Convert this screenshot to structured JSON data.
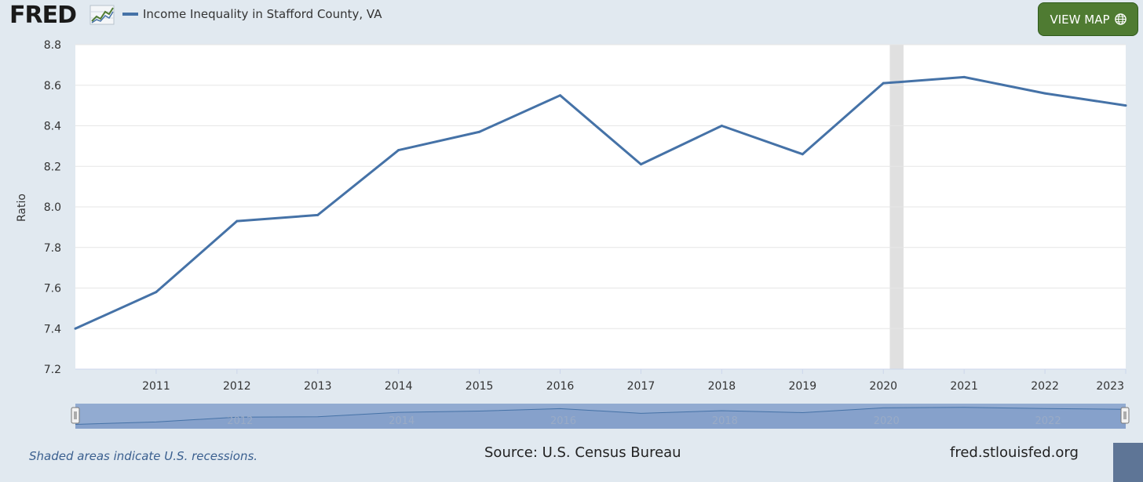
{
  "header": {
    "logo_text": "FRED",
    "view_map_label": "VIEW MAP"
  },
  "colors": {
    "series": "#4572a7",
    "button": "#4f7b32",
    "background": "#e1e9f0",
    "recession": "#e0e0e0",
    "navigator": "#8aa4cc"
  },
  "icons": {
    "logo": "line-graph-icon",
    "view_map": "globe-icon"
  },
  "chart_data": {
    "type": "line",
    "ylabel": "Ratio",
    "xlabel": "",
    "ylim": [
      7.2,
      8.8
    ],
    "yticks": [
      "7.2",
      "7.4",
      "7.6",
      "7.8",
      "8.0",
      "8.2",
      "8.4",
      "8.6",
      "8.8"
    ],
    "xlim": [
      2010,
      2023
    ],
    "xticks": [
      "2011",
      "2012",
      "2013",
      "2014",
      "2015",
      "2016",
      "2017",
      "2018",
      "2019",
      "2020",
      "2021",
      "2022",
      "2023"
    ],
    "navigator_ticks": [
      "2012",
      "2014",
      "2016",
      "2018",
      "2020",
      "2022"
    ],
    "grid": true,
    "recessions": [
      [
        2020.08,
        2020.25
      ]
    ],
    "series": [
      {
        "name": "Income Inequality in Stafford County, VA",
        "x": [
          2010,
          2011,
          2012,
          2013,
          2014,
          2015,
          2016,
          2017,
          2018,
          2019,
          2020,
          2021,
          2022,
          2023
        ],
        "values": [
          7.4,
          7.58,
          7.93,
          7.96,
          8.28,
          8.37,
          8.55,
          8.21,
          8.4,
          8.26,
          8.61,
          8.64,
          8.56,
          8.5
        ]
      }
    ]
  },
  "footer": {
    "note": "Shaded areas indicate U.S. recessions.",
    "source": "Source: U.S. Census Bureau",
    "site": "fred.stlouisfed.org"
  }
}
